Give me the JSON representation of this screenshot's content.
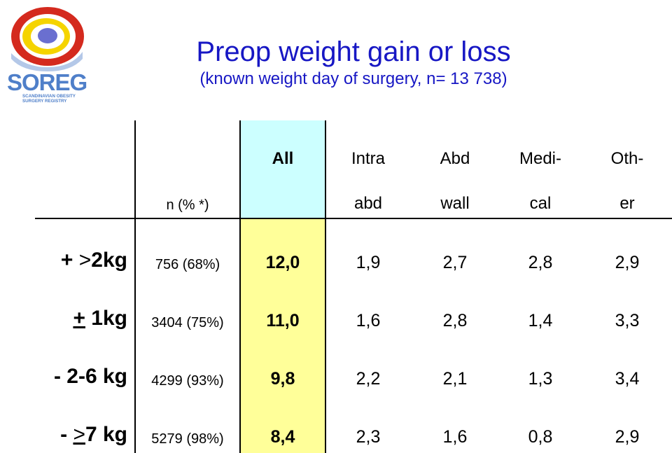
{
  "logo": {
    "word": "SOREG",
    "sub_line1": "SCANDINAVIAN OBESITY",
    "sub_line2": "SURGERY REGISTRY"
  },
  "title": "Preop weight gain or loss",
  "subtitle": "(known weight day of surgery, n= 13 738)",
  "table": {
    "n_header": "n (% *)",
    "columns": [
      {
        "line1": "All",
        "line2": ""
      },
      {
        "line1": "Intra",
        "line2": "abd"
      },
      {
        "line1": "Abd",
        "line2": "wall"
      },
      {
        "line1": "Medi-",
        "line2": "cal"
      },
      {
        "line1": "Oth-",
        "line2": "er"
      }
    ],
    "rows": [
      {
        "sign": "+ ",
        "mid": ">",
        "rest": "2kg",
        "n": "756 (68%)",
        "values": [
          "12,0",
          "1,9",
          "2,7",
          "2,8",
          "2,9"
        ]
      },
      {
        "sign": "+",
        "mid": "",
        "rest": " 1kg",
        "n": "3404 (75%)",
        "values": [
          "11,0",
          "1,6",
          "2,8",
          "1,4",
          "3,3"
        ]
      },
      {
        "sign": "- ",
        "mid": "",
        "rest": "2-6 kg",
        "n": "4299 (93%)",
        "values": [
          "9,8",
          "2,2",
          "2,1",
          "1,3",
          "3,4"
        ]
      },
      {
        "sign": "- ",
        "mid": ">",
        "rest": "7 kg",
        "n": "5279 (98%)",
        "values": [
          "8,4",
          "2,3",
          "1,6",
          "0,8",
          "2,9"
        ]
      }
    ]
  },
  "colors": {
    "title": "#1717c4",
    "all_header_bg": "#ccffff",
    "all_column_bg": "#ffff99",
    "logo_blue": "#4f7fc9",
    "logo_red": "#d42a1e",
    "logo_yellow": "#f5d400"
  }
}
